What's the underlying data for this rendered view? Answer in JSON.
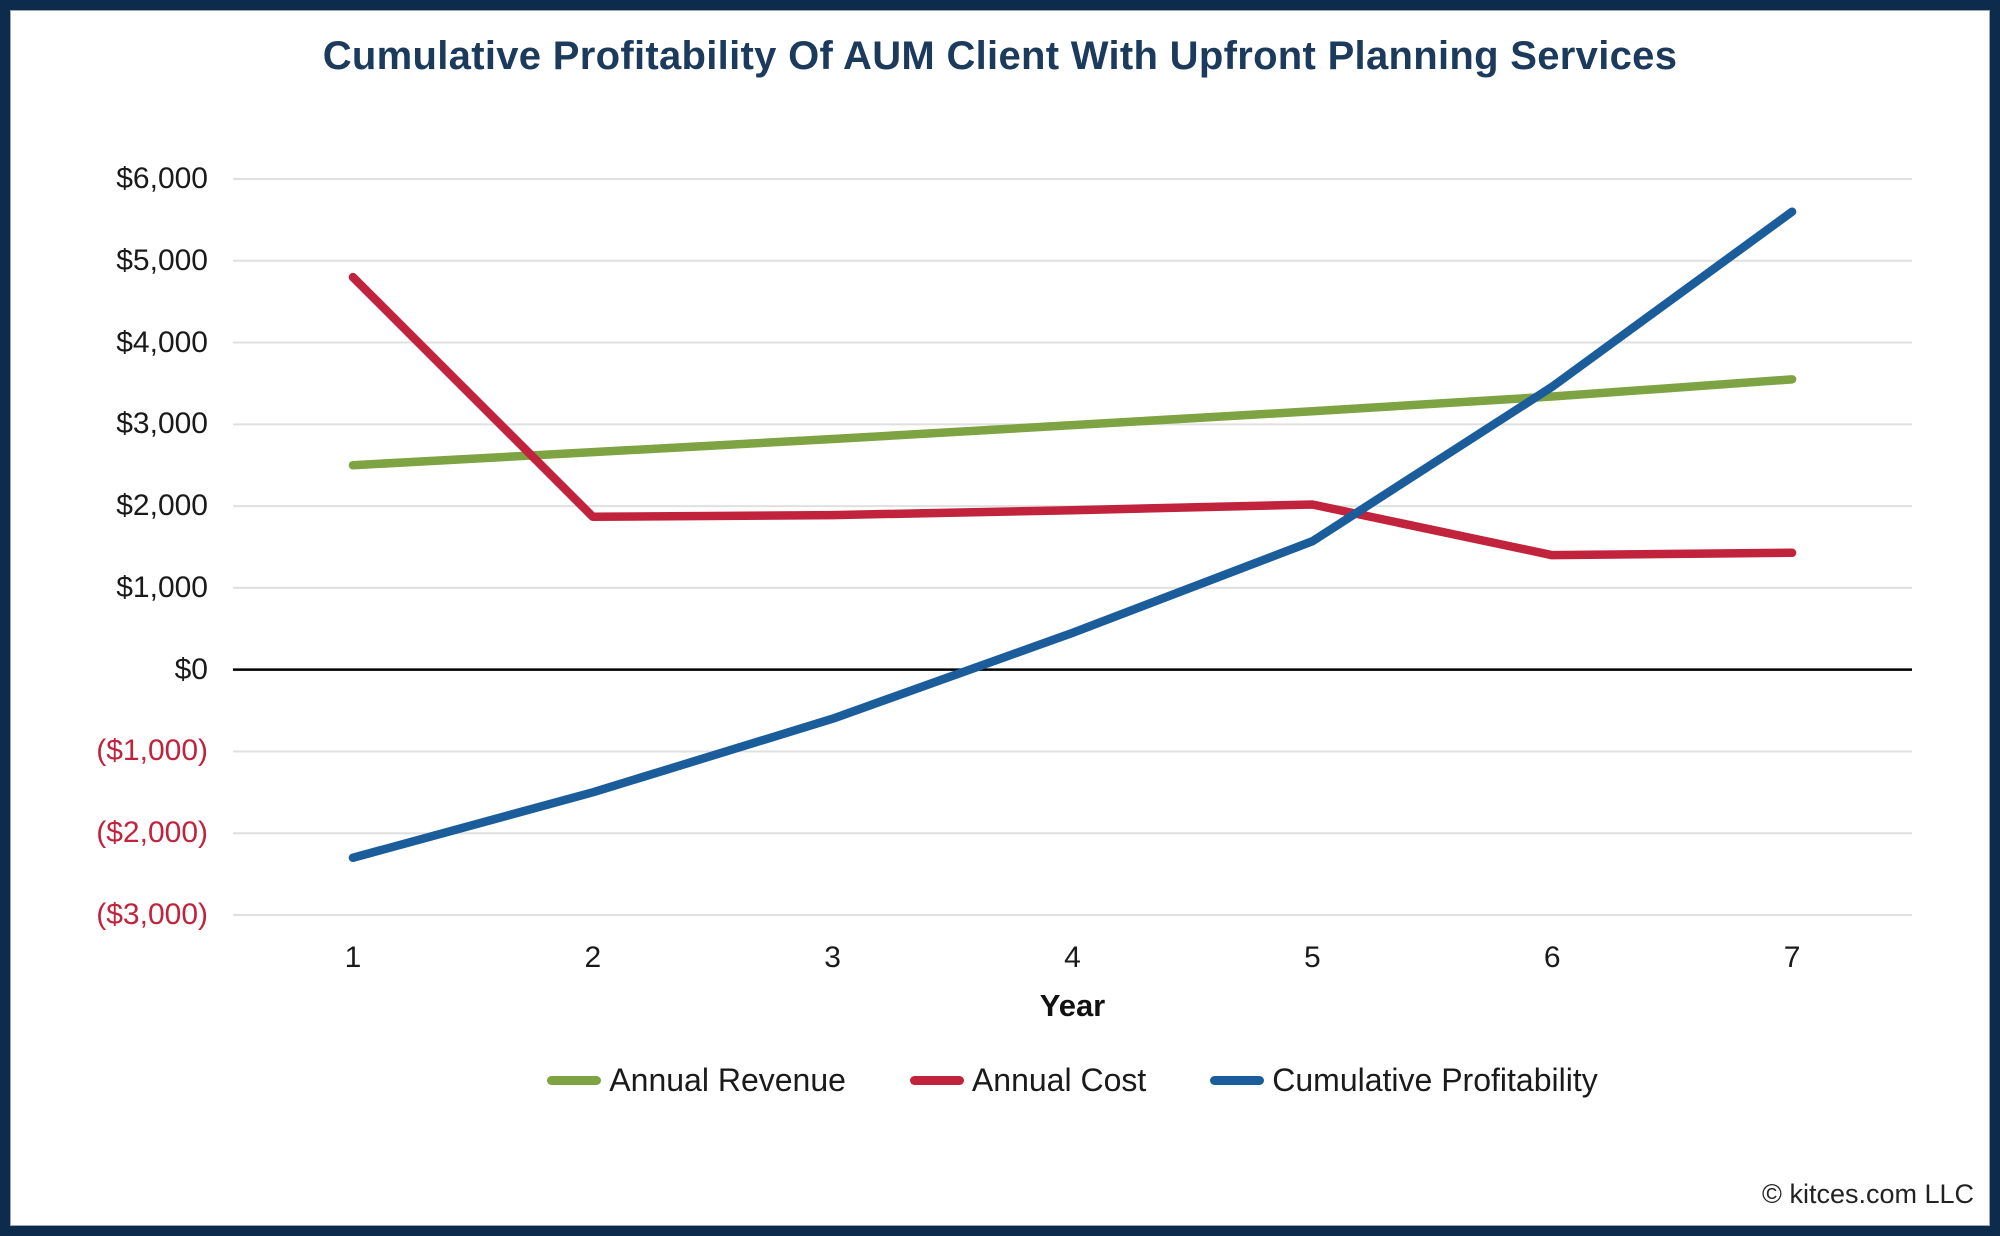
{
  "footer": {
    "copyright": "© kitces.com LLC"
  },
  "chart_data": {
    "type": "line",
    "title": "Cumulative Profitability Of AUM Client With Upfront Planning Services",
    "xlabel": "Year",
    "ylabel": "",
    "categories": [
      "1",
      "2",
      "3",
      "4",
      "5",
      "6",
      "7"
    ],
    "series": [
      {
        "name": "Annual Revenue",
        "color": "#7ea342",
        "values": [
          2500,
          2660,
          2820,
          2990,
          3160,
          3340,
          3550
        ]
      },
      {
        "name": "Annual Cost",
        "color": "#c2233c",
        "values": [
          4800,
          1870,
          1890,
          1950,
          2020,
          1400,
          1430
        ]
      },
      {
        "name": "Cumulative Profitability",
        "color": "#1b5c9b",
        "values": [
          -2300,
          -1500,
          -600,
          450,
          1570,
          3460,
          5600
        ]
      }
    ],
    "y_axis": {
      "min": -3000,
      "max": 6000,
      "step": 1000,
      "positive_color": "#1a1a1a",
      "negative_color": "#c2233c",
      "ticks": [
        {
          "value": 6000,
          "label": "$6,000"
        },
        {
          "value": 5000,
          "label": "$5,000"
        },
        {
          "value": 4000,
          "label": "$4,000"
        },
        {
          "value": 3000,
          "label": "$3,000"
        },
        {
          "value": 2000,
          "label": "$2,000"
        },
        {
          "value": 1000,
          "label": "$1,000"
        },
        {
          "value": 0,
          "label": "$0"
        },
        {
          "value": -1000,
          "label": "($1,000)"
        },
        {
          "value": -2000,
          "label": "($2,000)"
        },
        {
          "value": -3000,
          "label": "($3,000)"
        }
      ]
    },
    "grid": "horizontal",
    "gridline_color": "#e0e0e0",
    "zero_line": true,
    "zero_line_color": "#000000",
    "legend_position": "bottom"
  }
}
